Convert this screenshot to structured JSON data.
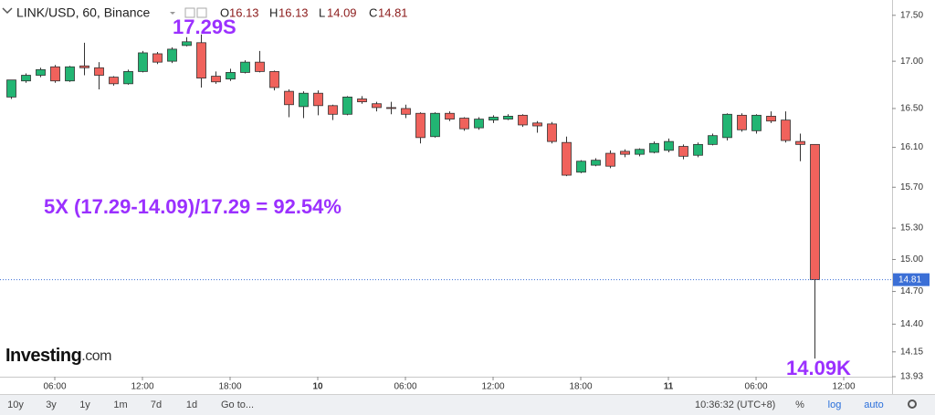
{
  "chart_data": {
    "type": "candlestick",
    "symbol": "LINK/USD, 60, Binance",
    "ohlc_letters": [
      "O",
      "H",
      "L",
      "C"
    ],
    "annotations": [
      "17.29S",
      "5X (17.29-14.09)/17.29 = 92.54%",
      "14.09K"
    ],
    "log_scale": true,
    "grid": false,
    "up_color": "#22b573",
    "down_color": "#f0625c",
    "x": [
      3,
      4,
      5,
      6,
      7,
      8,
      9,
      10,
      11,
      12,
      13,
      14,
      15,
      16,
      17,
      18,
      19,
      20,
      21,
      22,
      23,
      24,
      25,
      26,
      27,
      28,
      29,
      30,
      31,
      32,
      33,
      34,
      35,
      36,
      37,
      38,
      39,
      40,
      41,
      42,
      43,
      44,
      45,
      46,
      47,
      48,
      49,
      50,
      51,
      52,
      53,
      54,
      55,
      56,
      57,
      58
    ],
    "open": [
      16.62,
      16.79,
      16.85,
      16.94,
      16.79,
      16.95,
      16.93,
      16.83,
      16.76,
      16.89,
      17.08,
      17.0,
      17.17,
      17.2,
      16.84,
      16.81,
      16.88,
      16.99,
      16.89,
      16.68,
      16.52,
      16.66,
      16.53,
      16.44,
      16.6,
      16.55,
      16.51,
      16.5,
      16.45,
      16.21,
      16.45,
      16.4,
      16.3,
      16.38,
      16.39,
      16.43,
      16.35,
      16.34,
      16.15,
      15.85,
      15.92,
      16.04,
      16.06,
      16.03,
      16.05,
      16.07,
      16.11,
      16.02,
      16.13,
      16.2,
      16.43,
      16.27,
      16.42,
      16.38,
      16.16,
      16.13
    ],
    "high": [
      16.8,
      16.87,
      16.93,
      16.96,
      16.95,
      17.2,
      16.99,
      16.84,
      16.91,
      17.11,
      17.1,
      17.15,
      17.26,
      17.29,
      16.89,
      16.92,
      17.01,
      17.11,
      16.9,
      16.7,
      16.68,
      16.69,
      16.54,
      16.63,
      16.63,
      16.57,
      16.57,
      16.54,
      16.46,
      16.46,
      16.47,
      16.41,
      16.41,
      16.43,
      16.44,
      16.44,
      16.37,
      16.36,
      16.21,
      15.97,
      15.99,
      16.07,
      16.08,
      16.09,
      16.16,
      16.19,
      16.13,
      16.15,
      16.24,
      16.45,
      16.45,
      16.44,
      16.47,
      16.47,
      16.24,
      16.13
    ],
    "low": [
      16.6,
      16.77,
      16.83,
      16.77,
      16.78,
      16.85,
      16.7,
      16.74,
      16.75,
      16.88,
      16.97,
      16.98,
      17.16,
      16.72,
      16.76,
      16.79,
      16.87,
      16.88,
      16.69,
      16.41,
      16.4,
      16.43,
      16.38,
      16.43,
      16.55,
      16.47,
      16.44,
      16.4,
      16.14,
      16.2,
      16.37,
      16.27,
      16.28,
      16.35,
      16.38,
      16.31,
      16.25,
      16.14,
      15.81,
      15.84,
      15.91,
      15.89,
      16.0,
      16.01,
      16.04,
      16.05,
      15.98,
      16.0,
      16.12,
      16.17,
      16.26,
      16.24,
      16.35,
      16.15,
      15.96,
      14.09
    ],
    "close": [
      16.8,
      16.85,
      16.91,
      16.79,
      16.94,
      16.93,
      16.85,
      16.76,
      16.89,
      17.09,
      16.99,
      17.13,
      17.21,
      16.82,
      16.78,
      16.88,
      16.99,
      16.89,
      16.72,
      16.54,
      16.66,
      16.53,
      16.44,
      16.62,
      16.57,
      16.51,
      16.5,
      16.44,
      16.2,
      16.45,
      16.39,
      16.29,
      16.39,
      16.41,
      16.42,
      16.33,
      16.32,
      16.16,
      15.82,
      15.96,
      15.97,
      15.91,
      16.03,
      16.08,
      16.14,
      16.16,
      16.01,
      16.13,
      16.22,
      16.44,
      16.28,
      16.43,
      16.37,
      16.17,
      16.13,
      14.81
    ],
    "xlim": [
      2.25,
      63.31
    ],
    "xticks": [
      {
        "value": 6,
        "label": "06:00"
      },
      {
        "value": 12,
        "label": "12:00"
      },
      {
        "value": 18,
        "label": "18:00"
      },
      {
        "value": 24,
        "label": "10"
      },
      {
        "value": 30,
        "label": "06:00"
      },
      {
        "value": 36,
        "label": "12:00"
      },
      {
        "value": 42,
        "label": "18:00"
      },
      {
        "value": 48,
        "label": "11"
      },
      {
        "value": 54,
        "label": "06:00"
      },
      {
        "value": 60,
        "label": "12:00"
      }
    ],
    "ylim": [
      13.93,
      17.67
    ],
    "yticks": [
      {
        "value": 17.5,
        "label": "17.50"
      },
      {
        "value": 17,
        "label": "17.00"
      },
      {
        "value": 16.5,
        "label": "16.50"
      },
      {
        "value": 16.1,
        "label": "16.10"
      },
      {
        "value": 15.7,
        "label": "15.70"
      },
      {
        "value": 15.3,
        "label": "15.30"
      },
      {
        "value": 15,
        "label": "15.00"
      },
      {
        "value": 14.7,
        "label": "14.70"
      },
      {
        "value": 14.4,
        "label": "14.40"
      },
      14.15,
      13.93
    ]
  },
  "ui": {
    "logo": "Investing",
    "logo_suffix": ".com",
    "ranges": [
      "10y",
      "3y",
      "1y",
      "1m",
      "7d",
      "1d"
    ],
    "goto": "Go to...",
    "clock": "10:36:32 (UTC+8)",
    "buttons": [
      "%",
      "log",
      "auto"
    ]
  }
}
